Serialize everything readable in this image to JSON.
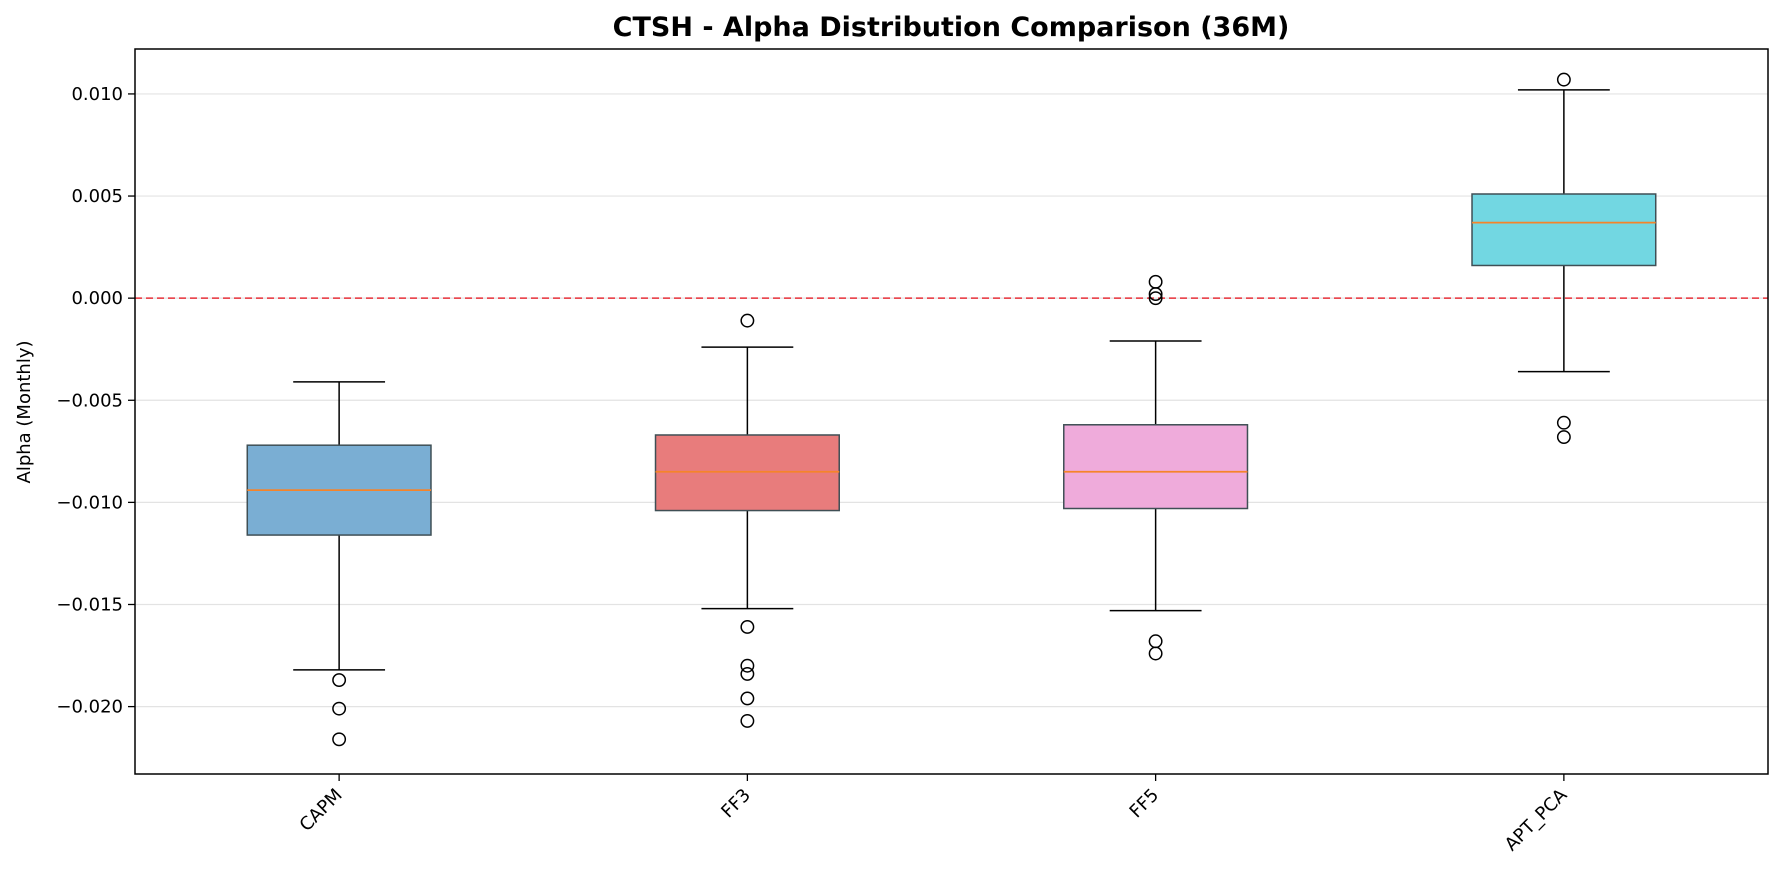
{
  "chart_data": {
    "type": "box",
    "title": "CTSH - Alpha Distribution Comparison (36M)",
    "xlabel": "",
    "ylabel": "Alpha (Monthly)",
    "ylim": [
      -0.0233,
      0.0122
    ],
    "yticks": [
      0.01,
      0.005,
      0.0,
      -0.005,
      -0.01,
      -0.015,
      -0.02
    ],
    "ytick_labels": [
      "0.010",
      "0.005",
      "0.000",
      "−0.005",
      "−0.010",
      "−0.015",
      "−0.020"
    ],
    "grid": {
      "y": true,
      "x": false
    },
    "reference_line": {
      "y": 0.0,
      "color": "#e8303a",
      "style": "dashed"
    },
    "median_color": "#f5842a",
    "categories": [
      "CAPM",
      "FF3",
      "FF5",
      "APT_PCA"
    ],
    "series": [
      {
        "category": "CAPM",
        "color": "#7aaed3",
        "whisker_low": -0.0182,
        "q1": -0.0116,
        "median": -0.0094,
        "q3": -0.0072,
        "whisker_high": -0.0041,
        "outliers": [
          -0.0187,
          -0.0201,
          -0.0216
        ]
      },
      {
        "category": "FF3",
        "color": "#e87c7c",
        "whisker_low": -0.0152,
        "q1": -0.0104,
        "median": -0.0085,
        "q3": -0.0067,
        "whisker_high": -0.0024,
        "outliers": [
          -0.0011,
          -0.0161,
          -0.018,
          -0.0184,
          -0.0196,
          -0.0207
        ]
      },
      {
        "category": "FF5",
        "color": "#efabdb",
        "whisker_low": -0.0153,
        "q1": -0.0103,
        "median": -0.0085,
        "q3": -0.0062,
        "whisker_high": -0.0021,
        "outliers": [
          0.0008,
          0.0002,
          0.0,
          -0.0168,
          -0.0174
        ]
      },
      {
        "category": "APT_PCA",
        "color": "#72d7e2",
        "whisker_low": -0.0036,
        "q1": 0.0016,
        "median": 0.0037,
        "q3": 0.0051,
        "whisker_high": 0.0102,
        "outliers": [
          0.0107,
          -0.0061,
          -0.0068
        ]
      }
    ]
  }
}
